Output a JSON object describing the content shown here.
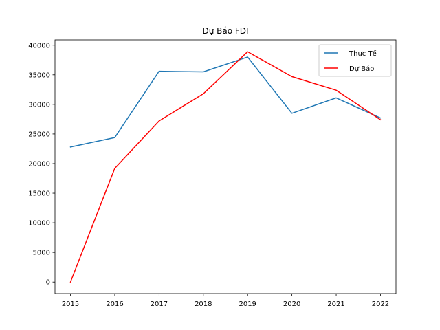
{
  "chart_data": {
    "type": "line",
    "title": "Dự Báo FDI",
    "xlabel": "",
    "ylabel": "",
    "x": [
      2015,
      2016,
      2017,
      2018,
      2019,
      2020,
      2021,
      2022
    ],
    "x_tick_labels": [
      "2015",
      "2016",
      "2017",
      "2018",
      "2019",
      "2020",
      "2021",
      "2022"
    ],
    "y_ticks": [
      0,
      5000,
      10000,
      15000,
      20000,
      25000,
      30000,
      35000,
      40000
    ],
    "y_tick_labels": [
      "0",
      "5000",
      "10000",
      "15000",
      "20000",
      "25000",
      "30000",
      "35000",
      "40000"
    ],
    "xlim": [
      2014.65,
      2022.35
    ],
    "ylim": [
      -1950,
      40900
    ],
    "grid": false,
    "legend_position": "top-right",
    "series": [
      {
        "name": "Thực Tế",
        "color": "#1f77b4",
        "values": [
          22800,
          24400,
          35600,
          35500,
          38000,
          28500,
          31100,
          27700
        ]
      },
      {
        "name": "Dự Báo",
        "color": "#ff0000",
        "values": [
          0,
          19200,
          27200,
          31800,
          38900,
          34700,
          32400,
          27400
        ]
      }
    ]
  }
}
